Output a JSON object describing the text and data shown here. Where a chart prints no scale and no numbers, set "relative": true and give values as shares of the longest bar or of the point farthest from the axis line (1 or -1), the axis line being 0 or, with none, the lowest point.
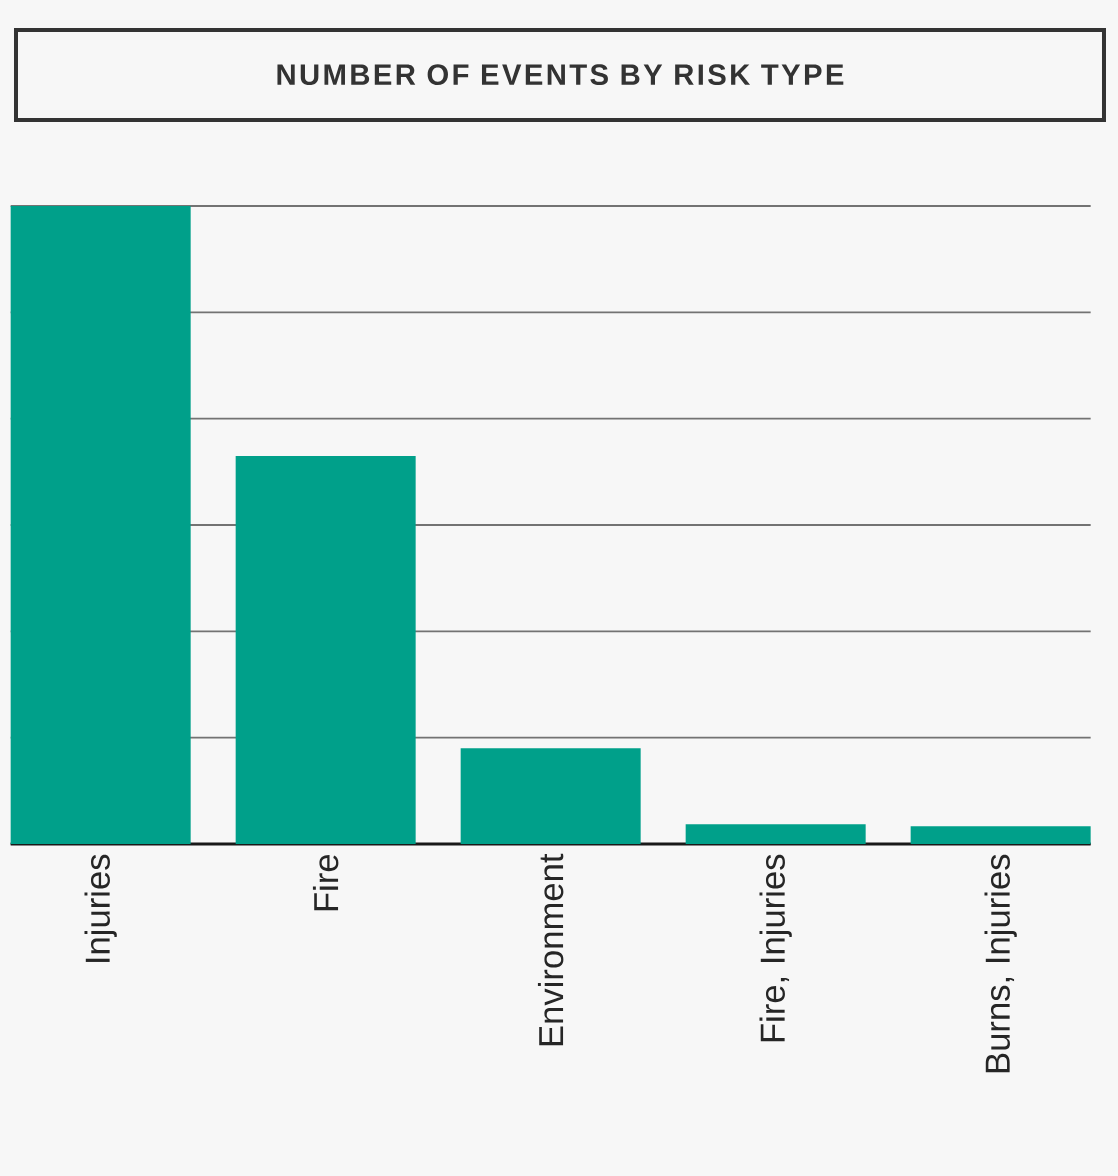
{
  "chart_data": {
    "type": "bar",
    "title": "NUMBER OF EVENTS BY RISK TYPE",
    "categories": [
      "Injuries",
      "Fire",
      "Environment",
      "Fire, Injuries",
      "Burns, Injuries"
    ],
    "values": [
      1,
      0.608,
      0.15,
      0.031,
      0.028
    ],
    "color": "#00a08a",
    "relative": true,
    "grid": "y"
  }
}
